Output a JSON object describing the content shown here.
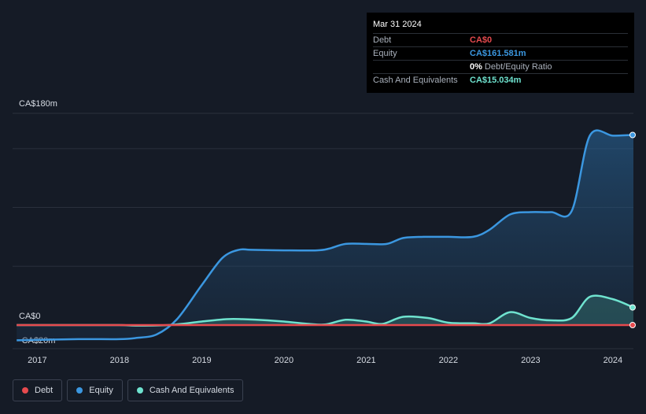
{
  "tooltip": {
    "date": "Mar 31 2024",
    "rows": [
      {
        "label": "Debt",
        "value": "CA$0",
        "color": "#e64a4e"
      },
      {
        "label": "Equity",
        "value": "CA$161.581m",
        "color": "#3b97e0"
      },
      {
        "label": "",
        "ratio_pct": "0%",
        "ratio_text": "Debt/Equity Ratio"
      },
      {
        "label": "Cash And Equivalents",
        "value": "CA$15.034m",
        "color": "#6fe3cf"
      }
    ]
  },
  "legend": [
    {
      "label": "Debt",
      "color": "#e64a4e"
    },
    {
      "label": "Equity",
      "color": "#3b97e0"
    },
    {
      "label": "Cash And Equivalents",
      "color": "#6fe3cf"
    }
  ],
  "chart_data": {
    "type": "area",
    "y_tick_labels": [
      {
        "value": 180,
        "label": "CA$180m"
      },
      {
        "value": 0,
        "label": "CA$0"
      },
      {
        "value": -20,
        "label": "-CA$20m"
      }
    ],
    "ylim": [
      -20,
      180
    ],
    "xlim": [
      2016.7,
      2024.25
    ],
    "x_tick_labels": [
      "2017",
      "2018",
      "2019",
      "2020",
      "2021",
      "2022",
      "2023",
      "2024"
    ],
    "grid": true,
    "series": [
      {
        "name": "Debt",
        "color": "#e64a4e",
        "x": [
          2016.75,
          2024.25
        ],
        "values": [
          0,
          0
        ]
      },
      {
        "name": "Equity",
        "color": "#3b97e0",
        "x": [
          2016.75,
          2017.5,
          2018.0,
          2018.2,
          2018.45,
          2018.7,
          2019.0,
          2019.25,
          2019.45,
          2019.6,
          2020.0,
          2020.4,
          2020.55,
          2020.75,
          2021.0,
          2021.25,
          2021.45,
          2021.7,
          2022.0,
          2022.3,
          2022.5,
          2022.75,
          2023.0,
          2023.25,
          2023.5,
          2023.72,
          2024.0,
          2024.25
        ],
        "values": [
          -13,
          -12,
          -12,
          -11,
          -8,
          5,
          34,
          57,
          64,
          64,
          63.5,
          63.5,
          65,
          69,
          69,
          69,
          74,
          75,
          75,
          75,
          81,
          94,
          96,
          96,
          97,
          161,
          161,
          161.6
        ]
      },
      {
        "name": "Cash And Equivalents",
        "color": "#6fe3cf",
        "x": [
          2016.75,
          2017.5,
          2018.0,
          2018.2,
          2018.6,
          2019.0,
          2019.3,
          2019.5,
          2019.8,
          2020.0,
          2020.3,
          2020.5,
          2020.75,
          2021.0,
          2021.2,
          2021.45,
          2021.75,
          2022.0,
          2022.3,
          2022.5,
          2022.75,
          2023.0,
          2023.25,
          2023.5,
          2023.72,
          2024.0,
          2024.25
        ],
        "values": [
          0,
          0,
          0,
          -0.5,
          0,
          3,
          5,
          5,
          4,
          3,
          1,
          0.5,
          4.5,
          3,
          1,
          7,
          6,
          2,
          1.5,
          1.5,
          11,
          6,
          4,
          6,
          24,
          22,
          15.0
        ]
      }
    ]
  }
}
